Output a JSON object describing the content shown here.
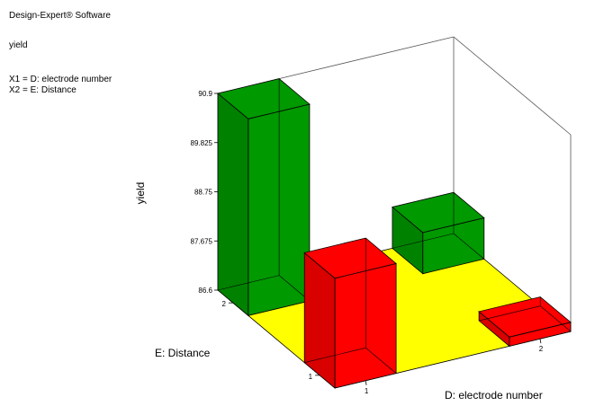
{
  "header": {
    "software": "Design-Expert® Software",
    "response": "yield",
    "x1": "X1 = D: electrode number",
    "x2": "X2 = E: Distance"
  },
  "chart_data": {
    "type": "bar3d",
    "title": "",
    "xlabel": "D: electrode number",
    "ylabel": "E: Distance",
    "zlabel": "yield",
    "x_ticks": [
      "1",
      "2"
    ],
    "y_ticks": [
      "1",
      "2"
    ],
    "z_ticks": [
      "86.6",
      "87.675",
      "88.75",
      "89.825",
      "90.9"
    ],
    "zlim": [
      86.6,
      90.9
    ],
    "colors": {
      "above": "#009900",
      "below": "#ff0000",
      "floor": "#ffff00"
    },
    "bars": [
      {
        "x": "1",
        "y": "2",
        "value": 90.9,
        "color": "#009900"
      },
      {
        "x": "1",
        "y": "1",
        "value": 89.0,
        "color": "#ff0000"
      },
      {
        "x": "2",
        "y": "2",
        "value": 87.5,
        "color": "#009900"
      },
      {
        "x": "2",
        "y": "1",
        "value": 86.8,
        "color": "#ff0000"
      }
    ]
  }
}
